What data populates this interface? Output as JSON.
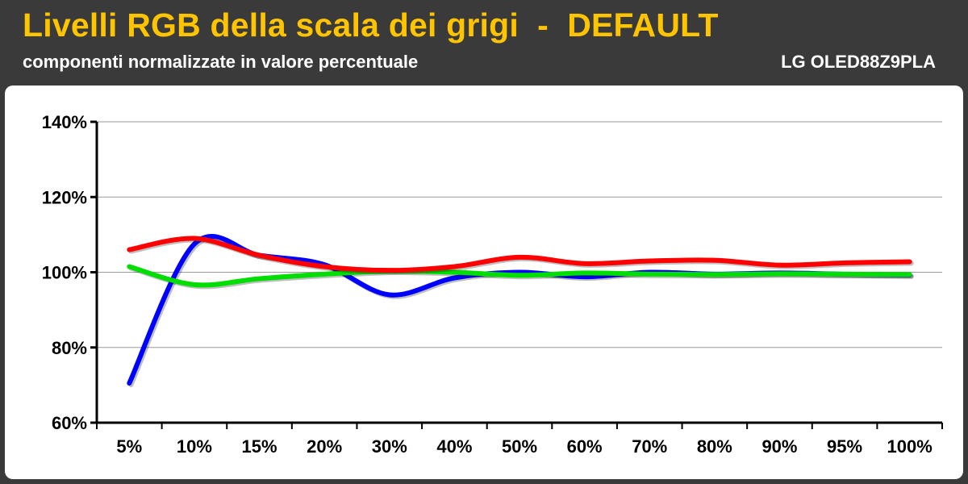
{
  "header": {
    "title": "Livelli RGB della scala dei grigi  -  DEFAULT",
    "subtitle": "componenti normalizzate in valore percentuale",
    "model": "LG OLED88Z9PLA"
  },
  "chart_data": {
    "type": "line",
    "title": "Livelli RGB della scala dei grigi  -  DEFAULT",
    "subtitle": "componenti normalizzate in valore percentuale",
    "categories": [
      "5%",
      "10%",
      "15%",
      "20%",
      "30%",
      "40%",
      "50%",
      "60%",
      "70%",
      "80%",
      "90%",
      "95%",
      "100%"
    ],
    "ylim": [
      60,
      140
    ],
    "yticks": [
      60,
      80,
      100,
      120,
      140
    ],
    "ytick_labels": [
      "60%",
      "80%",
      "100%",
      "120%",
      "140%"
    ],
    "grid": true,
    "legend": "none",
    "series": [
      {
        "color": "#0000ff",
        "values": [
          70.5,
          107.5,
          104.5,
          102,
          94,
          98.5,
          100,
          98.8,
          100,
          99.5,
          99.8,
          99.5,
          99.3
        ]
      },
      {
        "color": "#00dd00",
        "values": [
          101.5,
          96.7,
          98.3,
          99.5,
          100.3,
          100,
          99.2,
          99.8,
          99.5,
          99.4,
          99.6,
          99.5,
          99.4
        ]
      },
      {
        "color": "#ff0000",
        "values": [
          106,
          109,
          104.5,
          101.5,
          100.5,
          101.5,
          104,
          102.3,
          103,
          103.2,
          101.9,
          102.5,
          102.8
        ]
      }
    ]
  }
}
